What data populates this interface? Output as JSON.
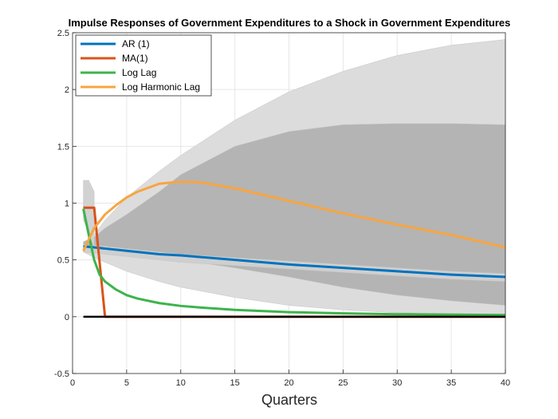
{
  "chart_data": {
    "type": "line",
    "title": "Impulse Responses of Government Expenditures to a Shock in Government Expenditures",
    "xlabel": "Quarters",
    "ylabel": "",
    "xlim": [
      0,
      40
    ],
    "ylim": [
      -0.5,
      2.5
    ],
    "xticks": [
      0,
      5,
      10,
      15,
      20,
      25,
      30,
      35,
      40
    ],
    "yticks": [
      -0.5,
      0,
      0.5,
      1,
      1.5,
      2,
      2.5
    ],
    "xtick_labels": [
      "0",
      "5",
      "10",
      "15",
      "20",
      "25",
      "30",
      "35",
      "40"
    ],
    "ytick_labels": [
      "-0.5",
      "0",
      "0.5",
      "1",
      "1.5",
      "2",
      "2.5"
    ],
    "grid": true,
    "legend_position": "top-left",
    "series": [
      {
        "name": "AR (1)",
        "color": "#0072BD",
        "x": [
          1,
          2,
          3,
          5,
          8,
          10,
          15,
          20,
          25,
          30,
          35,
          40
        ],
        "y": [
          0.62,
          0.61,
          0.6,
          0.58,
          0.55,
          0.54,
          0.5,
          0.46,
          0.43,
          0.4,
          0.37,
          0.35
        ]
      },
      {
        "name": "MA(1)",
        "color": "#D95319",
        "x": [
          1,
          2,
          3,
          40
        ],
        "y": [
          0.96,
          0.96,
          0.0,
          0.0
        ]
      },
      {
        "name": "Log Lag",
        "color": "#3CB44B",
        "x": [
          1,
          1.5,
          2,
          2.5,
          3,
          4,
          5,
          6,
          8,
          10,
          12,
          15,
          20,
          25,
          30,
          35,
          40
        ],
        "y": [
          0.95,
          0.72,
          0.5,
          0.37,
          0.31,
          0.24,
          0.19,
          0.16,
          0.12,
          0.095,
          0.08,
          0.06,
          0.04,
          0.03,
          0.022,
          0.018,
          0.015
        ]
      },
      {
        "name": "Log Harmonic Lag",
        "color": "#F7A541",
        "x": [
          1,
          2,
          3,
          4,
          5,
          6,
          8,
          10,
          12,
          15,
          20,
          25,
          30,
          35,
          40
        ],
        "y": [
          0.58,
          0.78,
          0.9,
          0.98,
          1.05,
          1.1,
          1.17,
          1.19,
          1.18,
          1.13,
          1.02,
          0.91,
          0.81,
          0.72,
          0.61
        ]
      }
    ],
    "bands": [
      {
        "color": "#dcdcdc",
        "x": [
          1,
          2,
          3,
          5,
          8,
          10,
          15,
          20,
          25,
          30,
          35,
          40
        ],
        "upper": [
          0.65,
          0.72,
          0.85,
          1.05,
          1.28,
          1.42,
          1.73,
          1.98,
          2.16,
          2.3,
          2.39,
          2.44
        ],
        "lower": [
          0.57,
          0.52,
          0.48,
          0.4,
          0.31,
          0.26,
          0.17,
          0.1,
          0.06,
          0.035,
          0.02,
          0.01
        ]
      },
      {
        "color": "#b4b4b4",
        "x": [
          1,
          2,
          3,
          5,
          8,
          10,
          15,
          20,
          25,
          30,
          35,
          40
        ],
        "upper": [
          0.66,
          0.7,
          0.78,
          0.9,
          1.1,
          1.25,
          1.5,
          1.63,
          1.69,
          1.7,
          1.7,
          1.69
        ],
        "lower": [
          0.64,
          0.6,
          0.58,
          0.56,
          0.53,
          0.5,
          0.43,
          0.35,
          0.26,
          0.19,
          0.14,
          0.1
        ]
      },
      {
        "color": "#cfcfcf",
        "x": [
          1,
          2,
          3,
          5,
          8,
          10,
          15,
          20,
          25,
          30,
          35,
          40
        ],
        "upper": [
          0.62,
          0.63,
          0.62,
          0.6,
          0.57,
          0.55,
          0.52,
          0.49,
          0.46,
          0.43,
          0.4,
          0.38
        ],
        "lower": [
          0.57,
          0.56,
          0.55,
          0.53,
          0.5,
          0.48,
          0.45,
          0.42,
          0.39,
          0.36,
          0.33,
          0.31
        ]
      },
      {
        "color": "#d2d2d2",
        "x": [
          1,
          1.5,
          2
        ],
        "upper": [
          1.2,
          1.2,
          1.1
        ],
        "lower": [
          0.85,
          0.75,
          0.6
        ]
      }
    ],
    "zero_line": {
      "y": 0,
      "color": "#000000"
    }
  }
}
